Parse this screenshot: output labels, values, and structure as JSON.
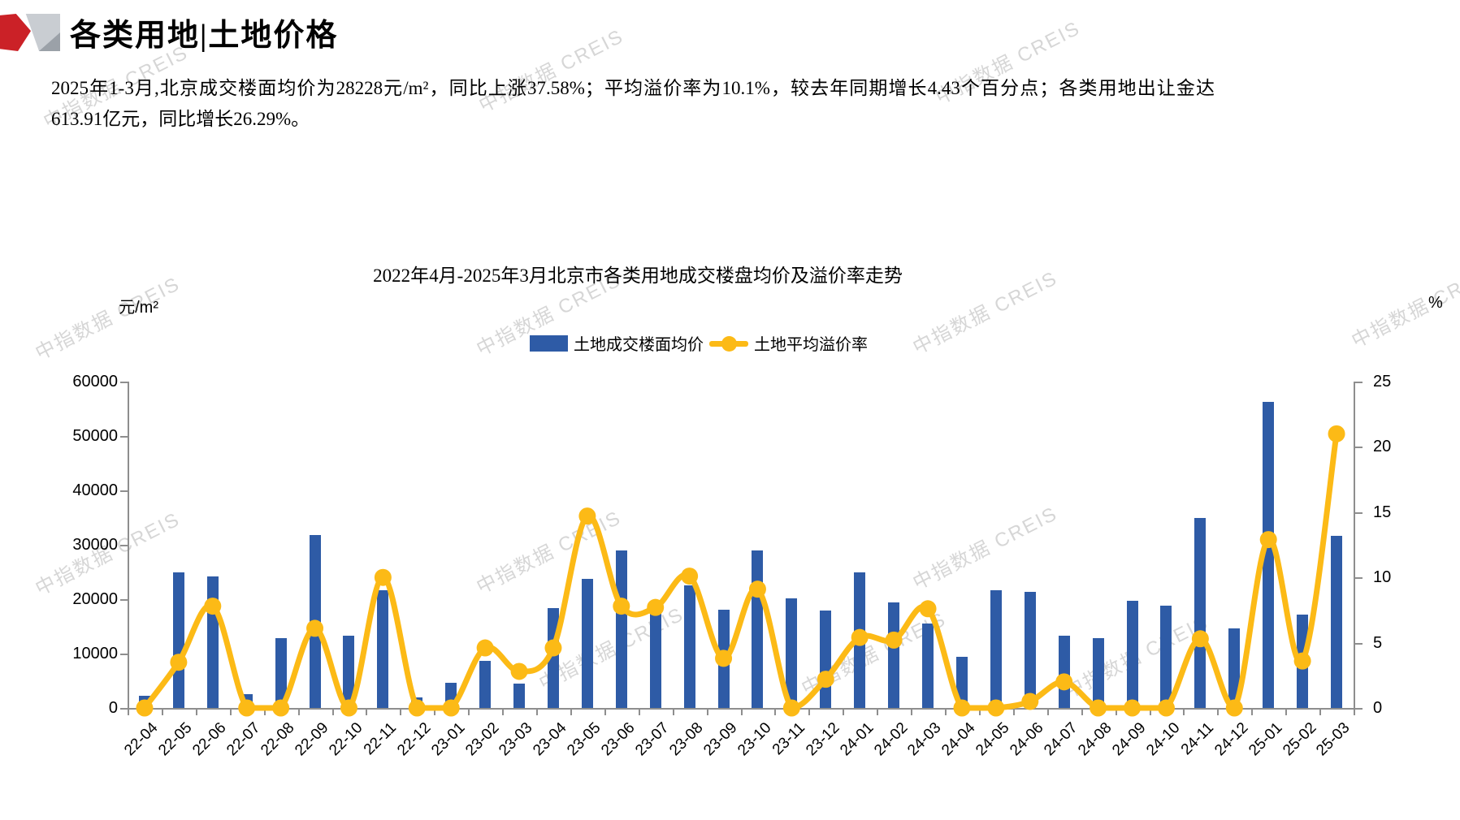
{
  "header": {
    "title": "各类用地|土地价格"
  },
  "summary": "2025年1-3月,北京成交楼面均价为28228元/m²，同比上涨37.58%；平均溢价率为10.1%，较去年同期增长4.43个百分点；各类用地出让金达613.91亿元，同比增长26.29%。",
  "watermark": {
    "text": "中指数据 CREIS"
  },
  "chart_data": {
    "type": "bar",
    "title": "2022年4月-2025年3月北京市各类用地成交楼盘均价及溢价率走势",
    "legend_position": "top-center",
    "grid": false,
    "left_axis": {
      "unit": "元/m²",
      "min": 0,
      "max": 60000,
      "ticks": [
        0,
        10000,
        20000,
        30000,
        40000,
        50000,
        60000
      ]
    },
    "right_axis": {
      "unit": "%",
      "min": 0,
      "max": 25,
      "ticks": [
        0,
        5,
        10,
        15,
        20,
        25
      ]
    },
    "categories": [
      "22-04",
      "22-05",
      "22-06",
      "22-07",
      "22-08",
      "22-09",
      "22-10",
      "22-11",
      "22-12",
      "23-01",
      "23-02",
      "23-03",
      "23-04",
      "23-05",
      "23-06",
      "23-07",
      "23-08",
      "23-09",
      "23-10",
      "23-11",
      "23-12",
      "24-01",
      "24-02",
      "24-03",
      "24-04",
      "24-05",
      "24-06",
      "24-07",
      "24-08",
      "24-09",
      "24-10",
      "24-11",
      "24-12",
      "25-01",
      "25-02",
      "25-03"
    ],
    "series": [
      {
        "name": "土地成交楼面均价",
        "type": "bar",
        "axis": "left",
        "color": "#2e5ba6",
        "values": [
          2200,
          24900,
          24200,
          2600,
          12800,
          31800,
          13300,
          21600,
          1900,
          4700,
          8600,
          4500,
          18300,
          23800,
          29000,
          19600,
          22500,
          18000,
          29000,
          20100,
          17900,
          24900,
          19400,
          15500,
          9400,
          21600,
          21300,
          13300,
          12900,
          19700,
          18800,
          35000,
          14700,
          56200,
          17100,
          31700
        ]
      },
      {
        "name": "土地平均溢价率",
        "type": "line",
        "axis": "right",
        "color": "#fcba16",
        "values": [
          0,
          3.5,
          7.8,
          0,
          0,
          6.1,
          0,
          10.0,
          0,
          0,
          4.6,
          2.8,
          4.6,
          14.7,
          7.8,
          7.7,
          10.1,
          3.8,
          9.1,
          0,
          2.2,
          5.4,
          5.2,
          7.6,
          0,
          0,
          0.5,
          2.0,
          0,
          0,
          0,
          5.3,
          0,
          12.9,
          3.6,
          21.0
        ]
      }
    ]
  }
}
